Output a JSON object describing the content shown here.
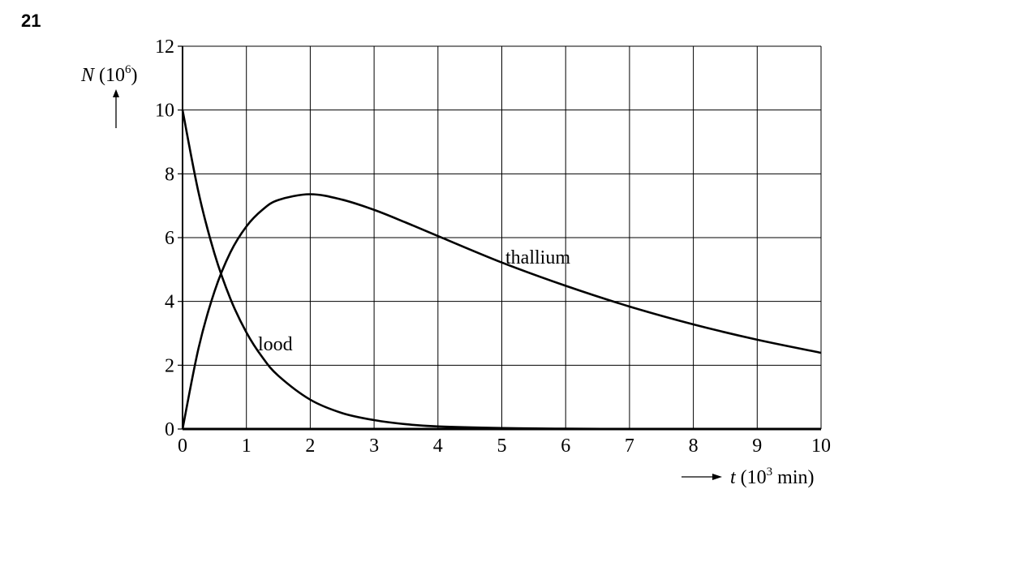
{
  "question_number": "21",
  "chart_data": {
    "type": "line",
    "ylabel": {
      "symbol": "N",
      "unit": " (10",
      "exponent": "6",
      "close": ")"
    },
    "xlabel": {
      "symbol": "t",
      "unit": " (10",
      "exponent": "3",
      "close": " min)"
    },
    "x": [
      0,
      0.25,
      0.5,
      0.75,
      1,
      1.25,
      1.5,
      2,
      2.5,
      3,
      3.5,
      4,
      5,
      6,
      7,
      8,
      9,
      10
    ],
    "series": [
      {
        "name": "lood",
        "color": "#000000",
        "values": [
          10,
          7.42,
          5.5,
          4.08,
          3.03,
          2.25,
          1.67,
          0.92,
          0.5,
          0.28,
          0.15,
          0.08,
          0.03,
          0.01,
          0,
          0,
          0,
          0
        ]
      },
      {
        "name": "thallium",
        "color": "#000000",
        "values": [
          0,
          2.53,
          4.31,
          5.54,
          6.35,
          6.87,
          7.18,
          7.36,
          7.19,
          6.87,
          6.47,
          6.05,
          5.22,
          4.49,
          3.84,
          3.28,
          2.8,
          2.39
        ]
      }
    ],
    "xlim": [
      0,
      10
    ],
    "xticks": [
      0,
      1,
      2,
      3,
      4,
      5,
      6,
      7,
      8,
      9,
      10
    ],
    "ylim": [
      0,
      12
    ],
    "yticks": [
      0,
      2,
      4,
      6,
      8,
      10,
      12
    ],
    "grid": true
  }
}
